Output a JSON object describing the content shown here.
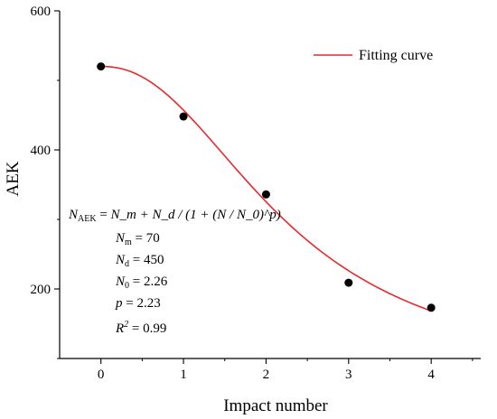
{
  "chart_data": {
    "type": "scatter",
    "xlabel": "Impact number",
    "ylabel": "AEK",
    "x_ticks": [
      "0",
      "1",
      "2",
      "3",
      "4"
    ],
    "y_ticks": [
      "200",
      "400",
      "600"
    ],
    "xlim": [
      -0.5,
      4.6
    ],
    "ylim": [
      100,
      600
    ],
    "grid": false,
    "legend_position": "top-right",
    "series": [
      {
        "type": "scatter",
        "x": [
          0,
          1,
          2,
          3,
          4
        ],
        "y": [
          520,
          448,
          336,
          209,
          173
        ]
      },
      {
        "name": "Fitting curve",
        "type": "line",
        "color": "#e8282b",
        "formula": "N_AEK = N_m + N_d / (1 + (N / N_0)^p)",
        "x_range": [
          0,
          4
        ]
      }
    ],
    "equation": {
      "formula_lhs": "N",
      "formula_lhs_sub": "AEK",
      "formula_eq": "=",
      "formula_rhs": "N_m + N_d / (1 + (N / N_0)^p)"
    },
    "params": {
      "Nm": {
        "symbol": "N",
        "sub": "m",
        "value": "= 70"
      },
      "Nd": {
        "symbol": "N",
        "sub": "d",
        "value": "= 450"
      },
      "N0": {
        "symbol": "N",
        "sub": "0",
        "value": "= 2.26"
      },
      "p": {
        "symbol": "p",
        "value": "= 2.23"
      },
      "R2": {
        "symbol": "R",
        "sup": "2",
        "value": "= 0.99"
      }
    },
    "fit_params": {
      "Nm": 70,
      "Nd": 450,
      "N0": 2.26,
      "p": 2.23
    }
  }
}
